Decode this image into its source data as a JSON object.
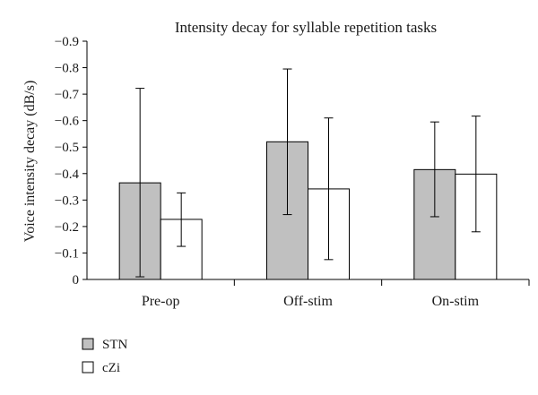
{
  "chart_data": {
    "type": "bar",
    "title": "Intensity decay for syllable repetition tasks",
    "xlabel": "",
    "ylabel": "Voice intensity decay (dB/s)",
    "categories": [
      "Pre-op",
      "Off-stim",
      "On-stim"
    ],
    "ylim": [
      0,
      -0.9
    ],
    "yticks": [
      "0",
      "−0.1",
      "−0.2",
      "−0.3",
      "−0.4",
      "−0.5",
      "−0.6",
      "−0.7",
      "−0.8",
      "−0.9"
    ],
    "grid": false,
    "legend_position": "bottom-left",
    "series": [
      {
        "name": "STN",
        "color": "#c0c0c0",
        "values": [
          -0.365,
          -0.52,
          -0.415
        ],
        "err_low": [
          -0.01,
          -0.245,
          -0.237
        ],
        "err_high": [
          -0.722,
          -0.795,
          -0.595
        ]
      },
      {
        "name": "cZi",
        "color": "#ffffff",
        "values": [
          -0.227,
          -0.342,
          -0.398
        ],
        "err_low": [
          -0.125,
          -0.075,
          -0.18
        ],
        "err_high": [
          -0.327,
          -0.61,
          -0.617
        ]
      }
    ]
  }
}
